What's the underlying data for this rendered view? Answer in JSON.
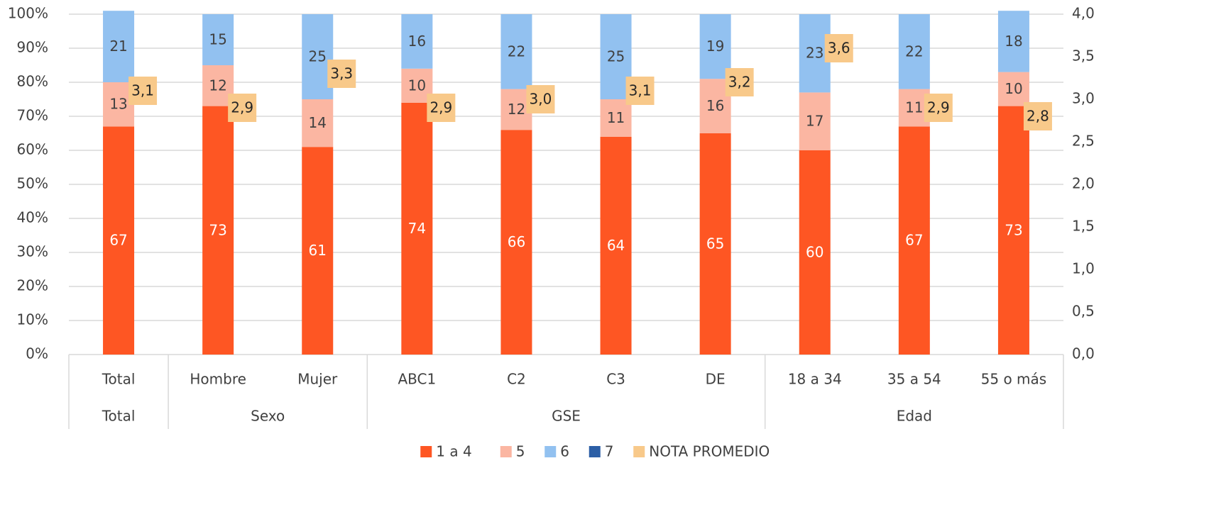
{
  "chart_data": {
    "type": "bar",
    "stacked": true,
    "categories": [
      "Total",
      "Hombre",
      "Mujer",
      "ABC1",
      "C2",
      "C3",
      "DE",
      "18 a 34",
      "35 a 54",
      "55 o más"
    ],
    "groups": [
      {
        "name": "Total",
        "size": 1
      },
      {
        "name": "Sexo",
        "size": 2
      },
      {
        "name": "GSE",
        "size": 4
      },
      {
        "name": "Edad",
        "size": 3
      }
    ],
    "series": [
      {
        "name": "1 a 4",
        "color": "#fe5623",
        "label_color": "#ffffff",
        "values": [
          67,
          73,
          61,
          74,
          66,
          64,
          65,
          60,
          67,
          73
        ]
      },
      {
        "name": "5",
        "color": "#fbb6a2",
        "label_color": "#404040",
        "values": [
          13,
          12,
          14,
          10,
          12,
          11,
          16,
          17,
          11,
          10
        ]
      },
      {
        "name": "6",
        "color": "#92c1f0",
        "label_color": "#404040",
        "values": [
          21,
          15,
          25,
          16,
          22,
          25,
          19,
          23,
          22,
          18
        ]
      },
      {
        "name": "7",
        "color": "#2c5fa6",
        "values": [
          0,
          0,
          0,
          0,
          0,
          0,
          0,
          0,
          0,
          0
        ]
      },
      {
        "name": "NOTA PROMEDIO",
        "color": "#f8c98a",
        "axis": "y2",
        "marker": "label-box",
        "values": [
          3.1,
          2.9,
          3.3,
          2.9,
          3.0,
          3.1,
          3.2,
          3.6,
          2.9,
          2.8
        ],
        "value_labels": [
          "3,1",
          "2,9",
          "3,3",
          "2,9",
          "3,0",
          "3,1",
          "3,2",
          "3,6",
          "2,9",
          "2,8"
        ]
      }
    ],
    "ylim": [
      0,
      100
    ],
    "yticks": [
      {
        "value": 0,
        "label": "0%"
      },
      {
        "value": 10,
        "label": "10%"
      },
      {
        "value": 20,
        "label": "20%"
      },
      {
        "value": 30,
        "label": "30%"
      },
      {
        "value": 40,
        "label": "40%"
      },
      {
        "value": 50,
        "label": "50%"
      },
      {
        "value": 60,
        "label": "60%"
      },
      {
        "value": 70,
        "label": "70%"
      },
      {
        "value": 80,
        "label": "80%"
      },
      {
        "value": 90,
        "label": "90%"
      },
      {
        "value": 100,
        "label": "100%"
      }
    ],
    "y2lim": [
      0,
      4
    ],
    "y2ticks": [
      {
        "value": 0,
        "label": "0,0"
      },
      {
        "value": 0.5,
        "label": "0,5"
      },
      {
        "value": 1,
        "label": "1,0"
      },
      {
        "value": 1.5,
        "label": "1,5"
      },
      {
        "value": 2,
        "label": "2,0"
      },
      {
        "value": 2.5,
        "label": "2,5"
      },
      {
        "value": 3,
        "label": "3,0"
      },
      {
        "value": 3.5,
        "label": "3,5"
      },
      {
        "value": 4,
        "label": "4,0"
      }
    ],
    "grid": true,
    "legend": "bottom"
  }
}
